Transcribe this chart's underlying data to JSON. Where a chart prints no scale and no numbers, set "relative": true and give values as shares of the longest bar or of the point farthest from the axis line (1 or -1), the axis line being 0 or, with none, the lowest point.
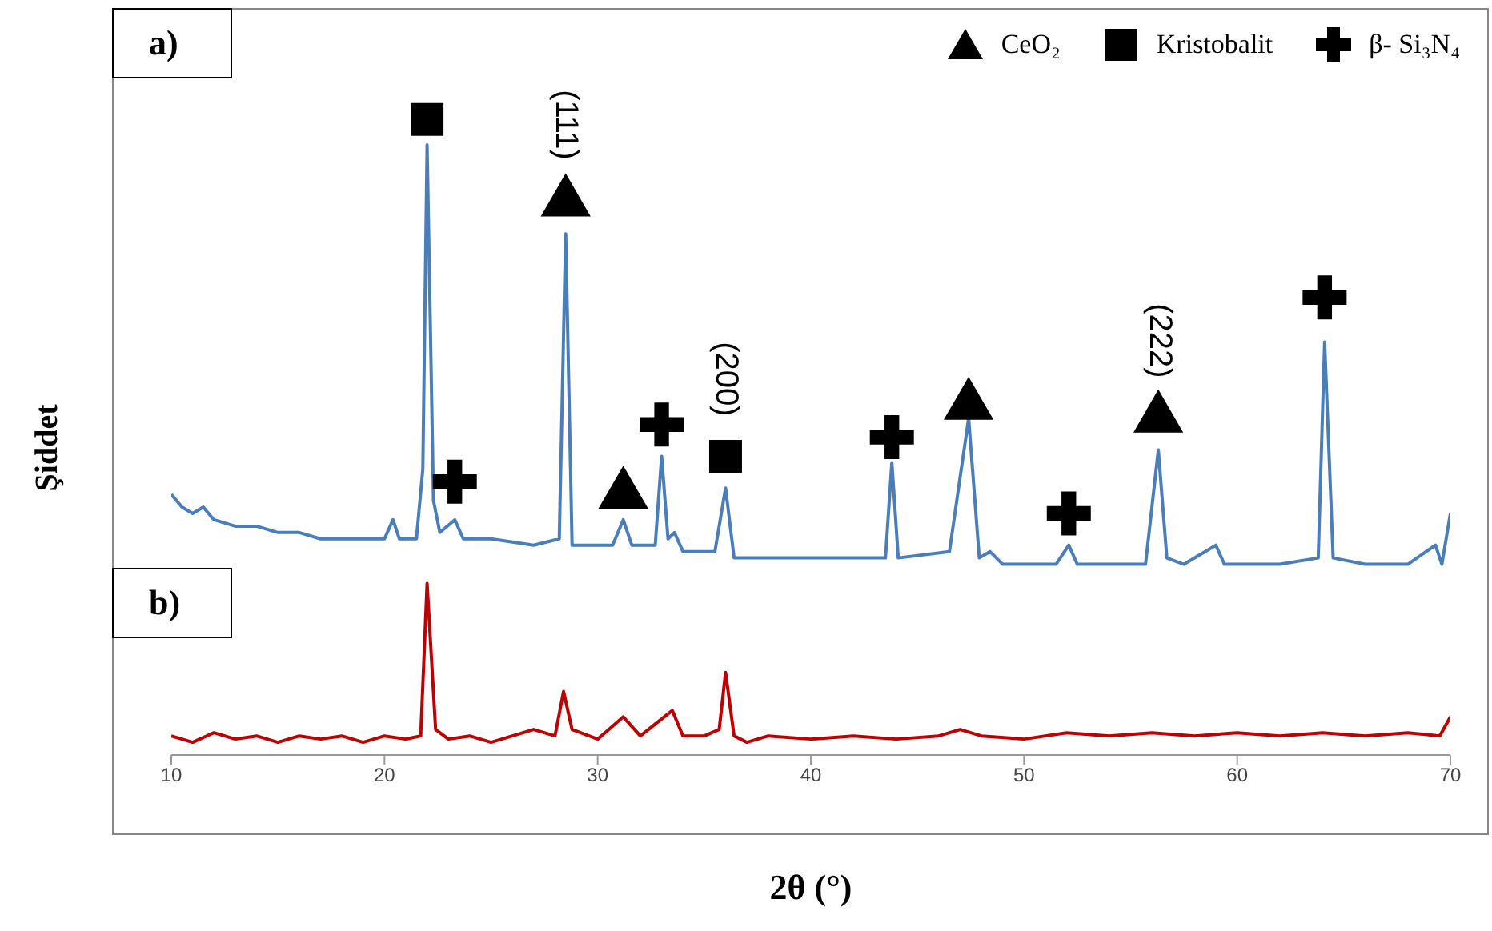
{
  "chart_data": {
    "type": "line",
    "xlabel": "2θ (°)",
    "ylabel": "Şiddet",
    "relative": true,
    "xlim": [
      10,
      70
    ],
    "xticks": [
      10,
      20,
      30,
      40,
      50,
      60,
      70
    ],
    "grid": false,
    "legend": "top right",
    "series": [
      {
        "color": "#4a7ebb",
        "x": [
          10,
          10.5,
          11,
          11.5,
          12,
          13,
          14,
          15,
          16,
          17,
          18,
          19,
          20,
          20.4,
          20.7,
          21.5,
          21.8,
          22,
          22.3,
          22.6,
          23.3,
          23.7,
          25,
          27,
          28.2,
          28.5,
          28.8,
          30,
          30.7,
          31.2,
          31.6,
          32.7,
          33,
          33.3,
          33.6,
          34,
          35.5,
          36,
          36.4,
          38,
          40,
          42,
          43.5,
          43.8,
          44.1,
          46.5,
          47.4,
          47.9,
          48.4,
          49,
          50,
          51.5,
          52.1,
          52.5,
          55.7,
          56.3,
          56.7,
          57.5,
          59,
          59.4,
          62,
          63.8,
          64.1,
          64.5,
          66,
          68,
          69.3,
          69.6,
          70
        ],
        "values": [
          0.41,
          0.39,
          0.38,
          0.39,
          0.37,
          0.36,
          0.36,
          0.35,
          0.35,
          0.34,
          0.34,
          0.34,
          0.34,
          0.37,
          0.34,
          0.34,
          0.45,
          0.96,
          0.4,
          0.35,
          0.37,
          0.34,
          0.34,
          0.33,
          0.34,
          0.82,
          0.33,
          0.33,
          0.33,
          0.37,
          0.33,
          0.33,
          0.47,
          0.34,
          0.35,
          0.32,
          0.32,
          0.42,
          0.31,
          0.31,
          0.31,
          0.31,
          0.31,
          0.46,
          0.31,
          0.32,
          0.53,
          0.31,
          0.32,
          0.3,
          0.3,
          0.3,
          0.33,
          0.3,
          0.3,
          0.48,
          0.31,
          0.3,
          0.33,
          0.3,
          0.3,
          0.31,
          0.65,
          0.31,
          0.3,
          0.3,
          0.33,
          0.3,
          0.38
        ]
      },
      {
        "color": "#c00000",
        "x": [
          10,
          11,
          12,
          13,
          14,
          15,
          16,
          17,
          18,
          19,
          20,
          21,
          21.7,
          22,
          22.4,
          23,
          24,
          25,
          26,
          27,
          28,
          28.4,
          28.8,
          30,
          31.2,
          32,
          33.5,
          34,
          35,
          35.7,
          36,
          36.4,
          37,
          38,
          40,
          42,
          44,
          46,
          47,
          48,
          50,
          52,
          54,
          56,
          58,
          60,
          62,
          64,
          66,
          68,
          69.5,
          70
        ],
        "values": [
          0.03,
          0.02,
          0.035,
          0.025,
          0.03,
          0.02,
          0.03,
          0.025,
          0.03,
          0.02,
          0.03,
          0.025,
          0.03,
          0.27,
          0.04,
          0.025,
          0.03,
          0.02,
          0.03,
          0.04,
          0.03,
          0.1,
          0.04,
          0.025,
          0.06,
          0.03,
          0.07,
          0.03,
          0.03,
          0.04,
          0.13,
          0.03,
          0.02,
          0.03,
          0.025,
          0.03,
          0.025,
          0.03,
          0.04,
          0.03,
          0.025,
          0.035,
          0.03,
          0.035,
          0.03,
          0.035,
          0.03,
          0.035,
          0.03,
          0.035,
          0.03,
          0.06
        ]
      },
      {
        "name": "CeO₂",
        "type": "scatter",
        "marker": "triangle",
        "color": "#000000",
        "x": [
          28.5,
          31.2,
          47.4,
          56.3
        ],
        "values": [
          0.87,
          0.41,
          0.55,
          0.53
        ]
      },
      {
        "name": "Kristobalit",
        "type": "scatter",
        "marker": "square",
        "color": "#000000",
        "x": [
          22,
          36
        ],
        "values": [
          1,
          0.47
        ]
      },
      {
        "name": "β- Si₃N₄",
        "type": "scatter",
        "marker": "cross",
        "color": "#000000",
        "x": [
          23.3,
          33,
          43.8,
          52.1,
          64.1
        ],
        "values": [
          0.43,
          0.52,
          0.5,
          0.38,
          0.72
        ]
      }
    ],
    "annotations": [
      "a)",
      "b)",
      {
        "text": "(111)",
        "x": 28.5,
        "y": 0.82
      },
      {
        "text": "(200)",
        "x": 36,
        "y": 0.42
      },
      {
        "text": "(222)",
        "x": 56.3,
        "y": 0.48
      }
    ]
  }
}
